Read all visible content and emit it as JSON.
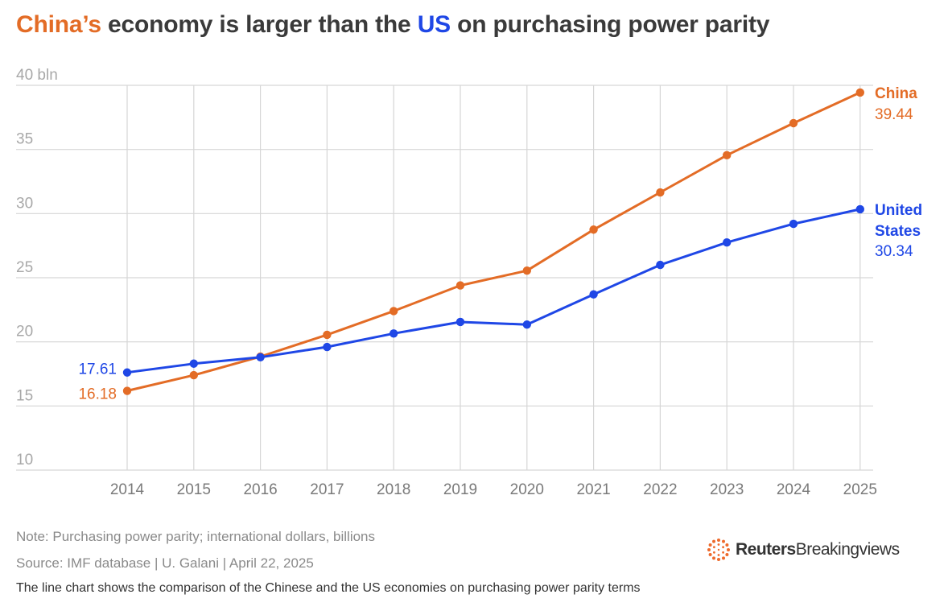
{
  "title": {
    "part1": "China’s",
    "part2": " economy is larger than the ",
    "part3": "US",
    "part4": " on purchasing power parity"
  },
  "colors": {
    "china": "#e36c26",
    "us": "#1f47e6",
    "grid": "#d6d6d6"
  },
  "chart_data": {
    "type": "line",
    "x": [
      2014,
      2015,
      2016,
      2017,
      2018,
      2019,
      2020,
      2021,
      2022,
      2023,
      2024,
      2025
    ],
    "x_tick_labels": [
      "2014",
      "2015",
      "2016",
      "2017",
      "2018",
      "2019",
      "2020",
      "2021",
      "2022",
      "2023",
      "2024",
      "2025"
    ],
    "y_tick_labels": [
      "40 bln",
      "35",
      "30",
      "25",
      "20",
      "15",
      "10"
    ],
    "y_tick_values": [
      40,
      35,
      30,
      25,
      20,
      15,
      10
    ],
    "ylim": [
      10,
      40
    ],
    "grid": true,
    "series": [
      {
        "name": "China",
        "color": "#e36c26",
        "values": [
          16.18,
          17.4,
          18.85,
          20.55,
          22.4,
          24.4,
          25.55,
          28.75,
          31.65,
          34.55,
          37.05,
          39.44
        ],
        "end_label_lines": [
          "China"
        ],
        "end_value": "39.44",
        "start_value": "16.18"
      },
      {
        "name": "United States",
        "color": "#1f47e6",
        "values": [
          17.61,
          18.3,
          18.8,
          19.6,
          20.65,
          21.55,
          21.35,
          23.7,
          26.0,
          27.75,
          29.2,
          30.34
        ],
        "end_label_lines": [
          "United",
          "States"
        ],
        "end_value": "30.34",
        "start_value": "17.61"
      }
    ]
  },
  "footer": {
    "note": "Note: Purchasing power parity; international dollars, billions",
    "source": "Source: IMF database | U. Galani | April 22, 2025",
    "caption": "The line chart shows the comparison of the Chinese and the US economies on purchasing power parity terms",
    "logo_brand": "Reuters",
    "logo_product": "Breakingviews"
  }
}
